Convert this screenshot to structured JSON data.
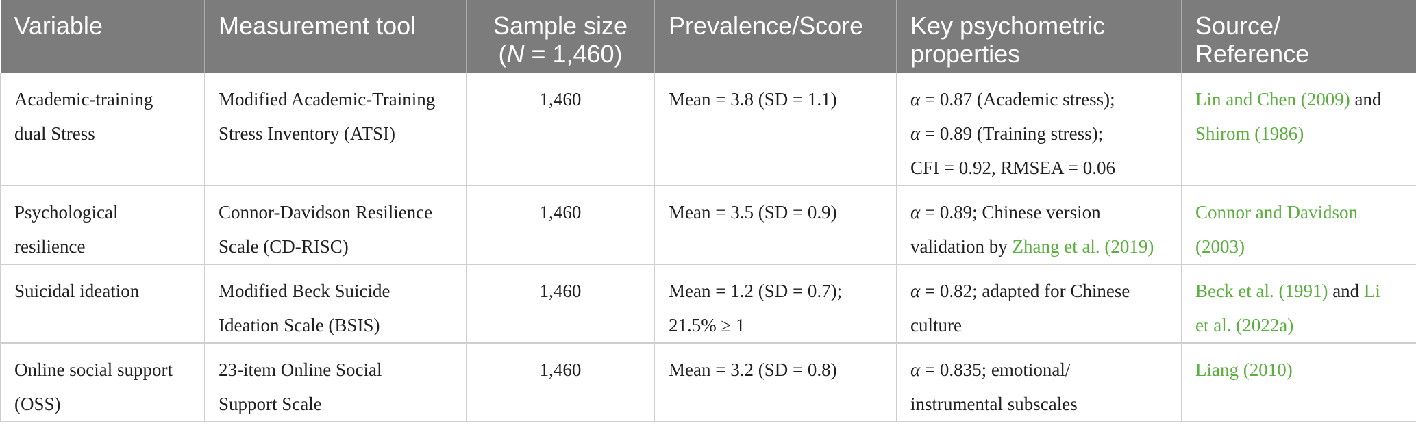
{
  "header": {
    "variable": "Variable",
    "tool": "Measurement tool",
    "sample_prefix": "Sample size",
    "sample_n": "N",
    "sample_suffix": " = 1,460)",
    "sample_open": "(",
    "prevalence": "Prevalence/Score",
    "psychometric_1": "Key psychometric",
    "psychometric_2": "properties",
    "source_1": "Source/",
    "source_2": "Reference"
  },
  "rows": [
    {
      "variable_1": "Academic-training",
      "variable_2": "dual Stress",
      "tool_1": "Modified Academic-Training",
      "tool_2": "Stress Inventory (ATSI)",
      "n": "1,460",
      "score_1": "Mean = 3.8 (SD = 1.1)",
      "psy_1_sym": "α",
      "psy_1_text": " = 0.87 (Academic stress);",
      "psy_2_sym": "α",
      "psy_2_text": " = 0.89 (Training stress);",
      "psy_3_text": "CFI = 0.92, RMSEA = 0.06",
      "src_link_1": "Lin and Chen (2009)",
      "src_and": " and",
      "src_link_2": "Shirom (1986)"
    },
    {
      "variable_1": "Psychological",
      "variable_2": "resilience",
      "tool_1": "Connor-Davidson Resilience",
      "tool_2": "Scale (CD-RISC)",
      "n": "1,460",
      "score_1": "Mean = 3.5 (SD = 0.9)",
      "psy_1_sym": "α",
      "psy_1_text": " = 0.89; Chinese version",
      "psy_2_text": "validation by ",
      "psy_2_link": "Zhang et al. (2019)",
      "src_link_1": "Connor and Davidson",
      "src_link_2": "(2003)"
    },
    {
      "variable_1": "Suicidal ideation",
      "tool_1": "Modified Beck Suicide",
      "tool_2": "Ideation Scale (BSIS)",
      "n": "1,460",
      "score_1": "Mean = 1.2 (SD = 0.7);",
      "score_2": "21.5% ≥ 1",
      "psy_1_sym": "α",
      "psy_1_text": " = 0.82; adapted for Chinese",
      "psy_2_text": "culture",
      "src_link_1": "Beck et al. (1991)",
      "src_and": " and ",
      "src_link_2": "Li",
      "src_link_3": "et al. (2022a)"
    },
    {
      "variable_1": "Online social support",
      "variable_2": "(OSS)",
      "tool_1": "23-item Online Social",
      "tool_2": "Support Scale",
      "n": "1,460",
      "score_1": "Mean = 3.2 (SD = 0.8)",
      "psy_1_sym": "α",
      "psy_1_text": " = 0.835; emotional/",
      "psy_2_text": "instrumental subscales",
      "src_link_1": "Liang (2010)"
    }
  ],
  "colors": {
    "header_bg": "#7b7c7b",
    "link": "#5aaf3e",
    "border": "#cfcfcf"
  }
}
